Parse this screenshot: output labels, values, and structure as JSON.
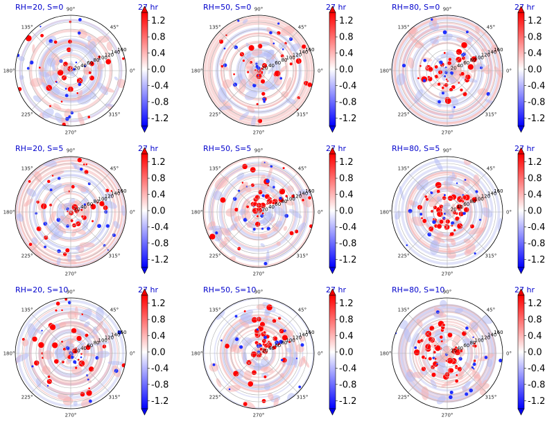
{
  "chart_data": [
    {
      "type": "heatmap",
      "title_left": "RH=20, S=0",
      "title_right": "27 hr"
    },
    {
      "type": "heatmap",
      "title_left": "RH=50, S=0",
      "title_right": "27 hr"
    },
    {
      "type": "heatmap",
      "title_left": "RH=80, S=0",
      "title_right": "27 hr"
    },
    {
      "type": "heatmap",
      "title_left": "RH=20, S=5",
      "title_right": "27 hr"
    },
    {
      "type": "heatmap",
      "title_left": "RH=50, S=5",
      "title_right": "27 hr"
    },
    {
      "type": "heatmap",
      "title_left": "RH=80, S=5",
      "title_right": "27 hr"
    },
    {
      "type": "heatmap",
      "title_left": "RH=20, S=10",
      "title_right": "27 hr"
    },
    {
      "type": "heatmap",
      "title_left": "RH=50, S=10",
      "title_right": "27 hr"
    },
    {
      "type": "heatmap",
      "title_left": "RH=80, S=10",
      "title_right": "27 hr"
    }
  ],
  "angle_ticks": [
    "0°",
    "45°",
    "90°",
    "135°",
    "180°",
    "225°",
    "270°",
    "315°"
  ],
  "radial_ticks": [
    "20",
    "40",
    "60",
    "80",
    "100",
    "120",
    "140",
    "160"
  ],
  "colorbar_ticks": [
    "1.2",
    "0.8",
    "0.4",
    "0.0",
    "-0.4",
    "-0.8",
    "-1.2"
  ],
  "colorbar_range": [
    -1.4,
    1.4
  ],
  "colormap": {
    "low": "#0000ff",
    "mid": "#ffffff",
    "high": "#ff0000"
  }
}
